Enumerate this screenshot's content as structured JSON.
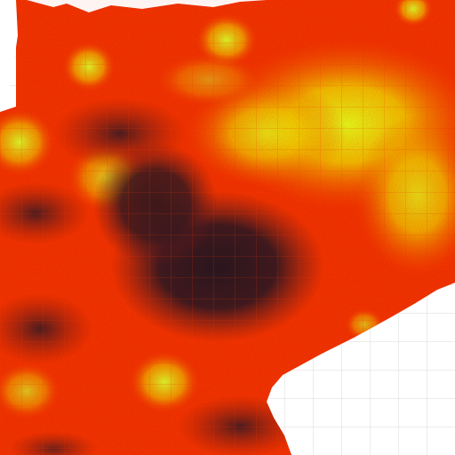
{
  "map": {
    "type": "heatmap-tile",
    "palette": {
      "background": "#ffffff",
      "grid_outside": "#d9d9d9",
      "low": "#3a1a22",
      "mid_low": "#7a1e1e",
      "mid": "#ff2a00",
      "mid_high": "#ff6a00",
      "high": "#ffd000",
      "peak": "#f2ff1a"
    }
  }
}
